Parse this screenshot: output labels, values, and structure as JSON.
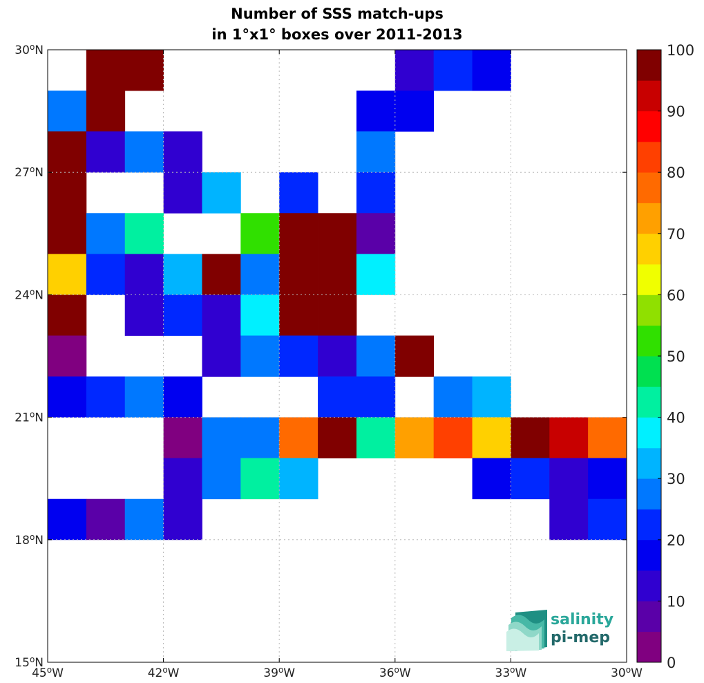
{
  "chart_data": {
    "type": "heatmap",
    "title_line1": "Number of SSS match-ups",
    "title_line2": "in 1°x1° boxes over 2011-2013",
    "xlim": [
      -45,
      -30
    ],
    "ylim": [
      15,
      30
    ],
    "x_ticks": [
      {
        "value": -45,
        "deg": "45",
        "hem": "W"
      },
      {
        "value": -42,
        "deg": "42",
        "hem": "W"
      },
      {
        "value": -39,
        "deg": "39",
        "hem": "W"
      },
      {
        "value": -36,
        "deg": "36",
        "hem": "W"
      },
      {
        "value": -33,
        "deg": "33",
        "hem": "W"
      },
      {
        "value": -30,
        "deg": "30",
        "hem": "W"
      }
    ],
    "y_ticks": [
      {
        "value": 15,
        "deg": "15",
        "hem": "N"
      },
      {
        "value": 18,
        "deg": "18",
        "hem": "N"
      },
      {
        "value": 21,
        "deg": "21",
        "hem": "N"
      },
      {
        "value": 24,
        "deg": "24",
        "hem": "N"
      },
      {
        "value": 27,
        "deg": "27",
        "hem": "N"
      },
      {
        "value": 30,
        "deg": "30",
        "hem": "N"
      }
    ],
    "grid": true,
    "colorbar": {
      "min": 0,
      "max": 100,
      "step": 5,
      "tick_labels": [
        "0",
        "10",
        "20",
        "30",
        "40",
        "50",
        "60",
        "70",
        "80",
        "90",
        "100"
      ],
      "colors": [
        "#800080",
        "#5a00a8",
        "#3000d0",
        "#0000f0",
        "#0028ff",
        "#0078ff",
        "#00b4ff",
        "#00f0ff",
        "#00f0a0",
        "#00e050",
        "#30e000",
        "#90e000",
        "#f0ff00",
        "#ffd000",
        "#ffa000",
        "#ff6a00",
        "#ff4000",
        "#ff0000",
        "#c80000",
        "#800000"
      ]
    },
    "cell_order": "rows from latitude 30°N down to 15°N; columns from 45°W eastward to 30°W; null = no match-ups",
    "cells": [
      [
        null,
        100,
        100,
        null,
        null,
        null,
        null,
        null,
        null,
        12,
        22,
        18,
        null,
        null,
        null
      ],
      [
        27,
        100,
        null,
        null,
        null,
        null,
        null,
        null,
        17,
        17,
        null,
        null,
        null,
        null,
        null
      ],
      [
        100,
        12,
        27,
        12,
        null,
        null,
        null,
        null,
        27,
        null,
        null,
        null,
        null,
        null,
        null
      ],
      [
        100,
        null,
        null,
        12,
        32,
        null,
        20,
        null,
        20,
        null,
        null,
        null,
        null,
        null,
        null
      ],
      [
        100,
        27,
        42,
        null,
        null,
        50,
        100,
        100,
        7,
        null,
        null,
        null,
        null,
        null,
        null
      ],
      [
        67,
        20,
        12,
        32,
        100,
        27,
        100,
        100,
        37,
        null,
        null,
        null,
        null,
        null,
        null
      ],
      [
        100,
        null,
        12,
        20,
        12,
        37,
        100,
        100,
        null,
        null,
        null,
        null,
        null,
        null,
        null
      ],
      [
        2,
        null,
        null,
        null,
        12,
        27,
        20,
        12,
        27,
        100,
        null,
        null,
        null,
        null,
        null
      ],
      [
        17,
        22,
        27,
        17,
        null,
        null,
        null,
        20,
        20,
        null,
        27,
        32,
        null,
        null,
        null
      ],
      [
        null,
        null,
        null,
        2,
        27,
        27,
        77,
        100,
        42,
        72,
        82,
        67,
        100,
        92,
        77
      ],
      [
        null,
        null,
        null,
        12,
        27,
        42,
        32,
        null,
        null,
        null,
        null,
        17,
        22,
        12,
        17
      ],
      [
        17,
        7,
        27,
        12,
        null,
        null,
        null,
        null,
        null,
        null,
        null,
        null,
        null,
        12,
        22
      ],
      [
        null,
        null,
        null,
        null,
        null,
        null,
        null,
        null,
        null,
        null,
        null,
        null,
        null,
        null,
        null
      ],
      [
        null,
        null,
        null,
        null,
        null,
        null,
        null,
        null,
        null,
        null,
        null,
        null,
        null,
        null,
        null
      ],
      [
        null,
        null,
        null,
        null,
        null,
        null,
        null,
        null,
        null,
        null,
        null,
        null,
        null,
        null,
        null
      ]
    ]
  },
  "logo": {
    "line1": "salinity",
    "line2": "pi-mep",
    "colors": {
      "primary": "#2aa79a",
      "secondary": "#23696a"
    }
  }
}
